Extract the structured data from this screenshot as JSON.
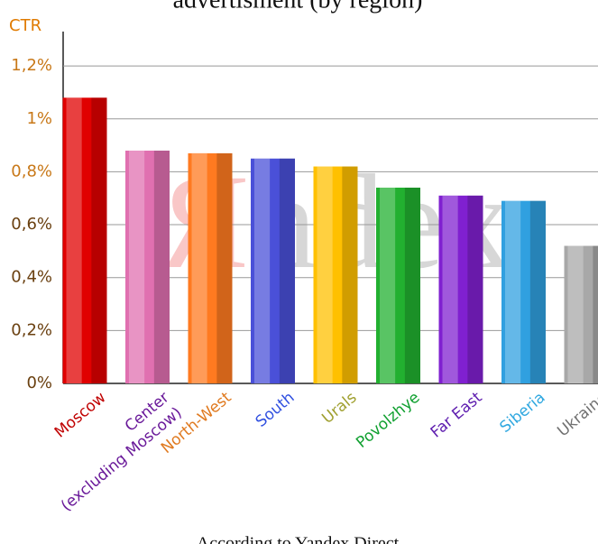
{
  "chart_data": {
    "type": "bar",
    "title": "advertisment (by region)",
    "ylabel": "CTR",
    "footer": "According to Yandex Direct",
    "watermark": [
      "Я",
      "ndex"
    ],
    "categories": [
      "Moscow",
      "Center\n(excluding Moscow)",
      "North-West",
      "South",
      "Urals",
      "Povolzhye",
      "Far East",
      "Siberia",
      "Ukraine"
    ],
    "values": [
      1.08,
      0.88,
      0.87,
      0.85,
      0.82,
      0.74,
      0.71,
      0.69,
      0.52
    ],
    "colors": [
      "#e00000",
      "#e070b0",
      "#ff7a20",
      "#4a50d8",
      "#ffc000",
      "#22b030",
      "#8020d0",
      "#30a0e0",
      "#a8a8a8"
    ],
    "label_colors": [
      "#c00000",
      "#6a1a9a",
      "#e07a20",
      "#3050e0",
      "#a0a030",
      "#10a030",
      "#6020b0",
      "#30a8e0",
      "#707070"
    ],
    "ylim": [
      0,
      1.33
    ],
    "yticks": [
      {
        "value": 0,
        "label": "0%"
      },
      {
        "value": 0.2,
        "label": "0,2%"
      },
      {
        "value": 0.4,
        "label": "0,4%"
      },
      {
        "value": 0.6,
        "label": "0,6%"
      },
      {
        "value": 0.8,
        "label": "0,8%"
      },
      {
        "value": 1,
        "label": "1%"
      },
      {
        "value": 1.2,
        "label": "1,2%"
      }
    ],
    "grid": true
  }
}
